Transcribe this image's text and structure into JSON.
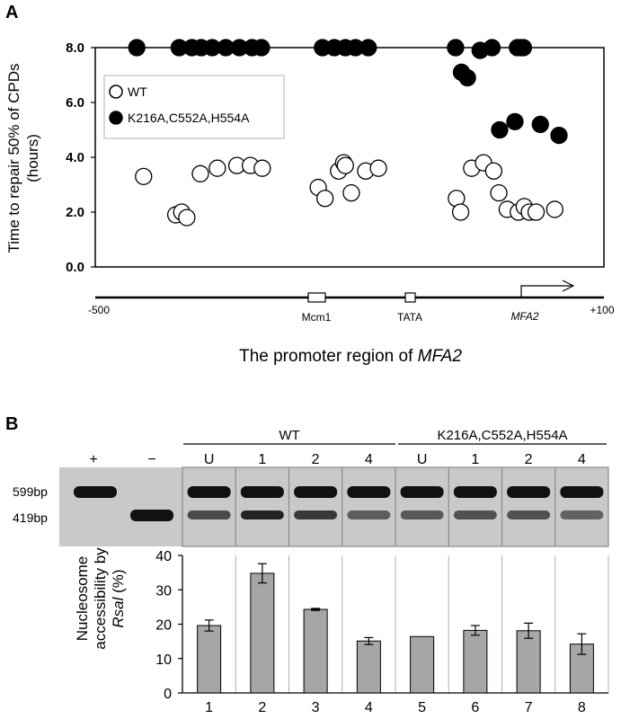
{
  "panel_a": {
    "letter": "A"
  },
  "panel_b": {
    "letter": "B"
  },
  "promoter": {
    "start": "-500",
    "end": "+100",
    "mcm1": "Mcm1",
    "tata": "TATA",
    "gene": "MFA2",
    "title_prefix": "The promoter region of ",
    "title_gene": "MFA2"
  },
  "gel": {
    "lane_plus": "+",
    "lane_minus": "−",
    "group_wt": "WT",
    "group_mut": "K216A,C552A,H554A",
    "lanes": [
      "U",
      "1",
      "2",
      "4",
      "U",
      "1",
      "2",
      "4"
    ],
    "band_top": "599bp",
    "band_bottom": "419bp"
  },
  "colors": {
    "mut_fill": "#000000",
    "wt_fill": "#ffffff",
    "bar_fill": "#a6a6a6",
    "gel_bg": "#c9c9c9",
    "gel_band": "#111111"
  },
  "chart_data": [
    {
      "type": "scatter",
      "xlabel": "",
      "ylabel": "Time to repair 50% of CPDs (hours)",
      "ylabel_lines": [
        "Time to repair 50% of CPDs",
        "(hours)"
      ],
      "xlim": [
        -500,
        100
      ],
      "ylim": [
        0,
        8
      ],
      "yticks": [
        "0.0",
        "2.0",
        "4.0",
        "6.0",
        "8.0"
      ],
      "legend_position": "top-left",
      "series": [
        {
          "name": "WT",
          "x": [
            -443,
            -405,
            -398,
            -392,
            -376,
            -356,
            -333,
            -317,
            -303,
            -237,
            -229,
            -213,
            -207,
            -205,
            -198,
            -181,
            -166,
            -74,
            -69,
            -56,
            -42,
            -30,
            -24,
            -14,
            -1,
            6,
            12,
            20,
            42
          ],
          "y": [
            3.3,
            1.9,
            2.0,
            1.8,
            3.4,
            3.6,
            3.7,
            3.7,
            3.6,
            2.9,
            2.5,
            3.5,
            3.8,
            3.7,
            2.7,
            3.5,
            3.6,
            2.5,
            2.0,
            3.6,
            3.8,
            3.5,
            2.7,
            2.1,
            2.0,
            2.2,
            2.0,
            2.0,
            2.1
          ]
        },
        {
          "name": "K216A,C552A,H554A",
          "x": [
            -451,
            -401,
            -386,
            -375,
            -362,
            -346,
            -330,
            -315,
            -304,
            -232,
            -218,
            -205,
            -193,
            -178,
            -75,
            -68,
            -61,
            -46,
            -32,
            -23,
            -5,
            -2,
            2,
            5,
            25,
            47
          ],
          "y": [
            8.0,
            8.0,
            8.0,
            8.0,
            8.0,
            8.0,
            8.0,
            8.0,
            8.0,
            8.0,
            8.0,
            8.0,
            8.0,
            8.0,
            8.0,
            7.1,
            6.9,
            7.9,
            8.0,
            5.0,
            5.3,
            8.0,
            8.0,
            8.0,
            5.2,
            4.8
          ]
        }
      ]
    },
    {
      "type": "bar",
      "ylabel": "Nucleosome accessibility by RsaI (%)",
      "ylabel_line1": "Nucleosome",
      "ylabel_line2": "accessibility by",
      "ylabel_italic": "Rsal",
      "ylabel_unit": " (%)",
      "categories": [
        "1",
        "2",
        "3",
        "4",
        "5",
        "6",
        "7",
        "8"
      ],
      "values": [
        19.6,
        34.8,
        24.3,
        15.1,
        16.4,
        18.2,
        18.1,
        14.2
      ],
      "errors": [
        1.6,
        2.8,
        0.3,
        1.0,
        0.0,
        1.4,
        2.2,
        3.0
      ],
      "ylim": [
        0,
        40
      ],
      "yticks": [
        "0",
        "10",
        "20",
        "30",
        "40"
      ]
    }
  ]
}
